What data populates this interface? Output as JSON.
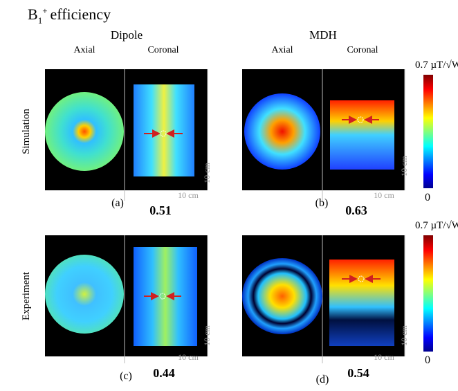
{
  "header": {
    "title_base": "B",
    "title_sub": "1",
    "title_sup": "+",
    "title_rest": "efficiency"
  },
  "columns": [
    {
      "title": "Dipole",
      "views": [
        "Axial",
        "Coronal"
      ]
    },
    {
      "title": "MDH",
      "views": [
        "Axial",
        "Coronal"
      ]
    }
  ],
  "rows": [
    "Simulation",
    "Experiment"
  ],
  "panels": [
    {
      "label": "(a)",
      "value": "0.51",
      "scale_h": "10 cm",
      "scale_v": "10 cm"
    },
    {
      "label": "(b)",
      "value": "0.63",
      "scale_h": "10 cm",
      "scale_v": "10 cm"
    },
    {
      "label": "(c)",
      "value": "0.44",
      "scale_h": "10 cm",
      "scale_v": "10 cm"
    },
    {
      "label": "(d)",
      "value": "0.54",
      "scale_h": "10 cm",
      "scale_v": "10 cm"
    }
  ],
  "colorbars": [
    {
      "max": "0.7 µT/√W",
      "min": "0"
    },
    {
      "max": "0.7 µT/√W",
      "min": "0"
    }
  ]
}
